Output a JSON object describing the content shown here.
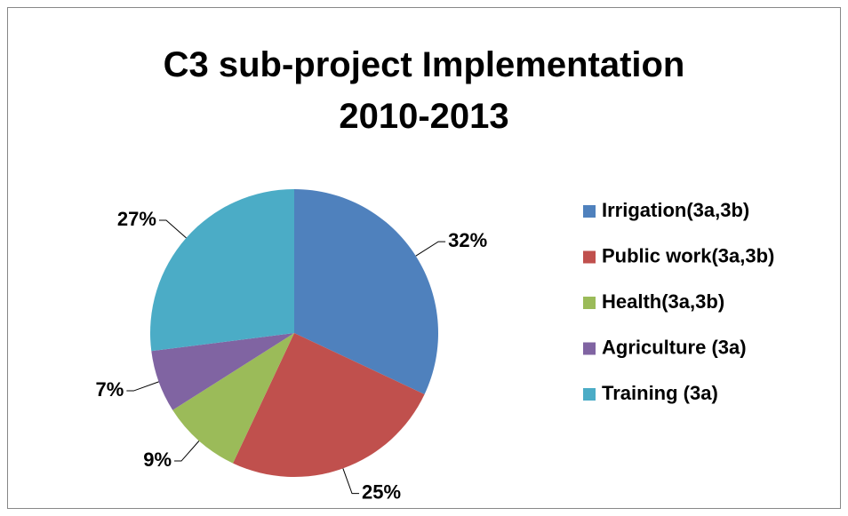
{
  "chart_data": {
    "type": "pie",
    "title": "C3 sub-project Implementation 2010-2013",
    "categories": [
      "Irrigation(3a,3b)",
      "Public work(3a,3b)",
      "Health(3a,3b)",
      "Agriculture (3a)",
      "Training (3a)"
    ],
    "values": [
      32,
      25,
      9,
      7,
      27
    ],
    "value_labels": [
      "32%",
      "25%",
      "9%",
      "7%",
      "27%"
    ],
    "colors": [
      "#4f81bd",
      "#c0504d",
      "#9bbb59",
      "#8064a2",
      "#4bacc6"
    ],
    "legend": "right"
  }
}
